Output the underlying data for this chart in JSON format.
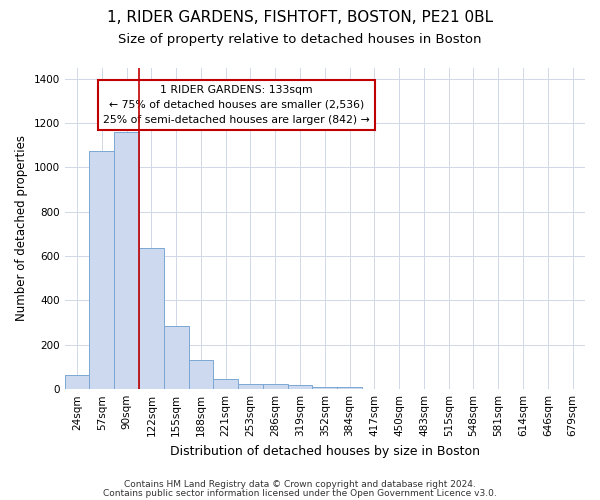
{
  "title1": "1, RIDER GARDENS, FISHTOFT, BOSTON, PE21 0BL",
  "title2": "Size of property relative to detached houses in Boston",
  "xlabel": "Distribution of detached houses by size in Boston",
  "ylabel": "Number of detached properties",
  "categories": [
    "24sqm",
    "57sqm",
    "90sqm",
    "122sqm",
    "155sqm",
    "188sqm",
    "221sqm",
    "253sqm",
    "286sqm",
    "319sqm",
    "352sqm",
    "384sqm",
    "417sqm",
    "450sqm",
    "483sqm",
    "515sqm",
    "548sqm",
    "581sqm",
    "614sqm",
    "646sqm",
    "679sqm"
  ],
  "values": [
    65,
    1075,
    1160,
    635,
    285,
    130,
    48,
    22,
    22,
    18,
    12,
    12,
    0,
    0,
    0,
    0,
    0,
    0,
    0,
    0,
    0
  ],
  "bar_color": "#ccd9ee",
  "bar_edge_color": "#7ba7d4",
  "red_line_x": 2.5,
  "annotation_text": "1 RIDER GARDENS: 133sqm\n← 75% of detached houses are smaller (2,536)\n25% of semi-detached houses are larger (842) →",
  "annotation_box_color": "#ffffff",
  "annotation_box_edge": "#c00000",
  "red_line_color": "#c00000",
  "footer1": "Contains HM Land Registry data © Crown copyright and database right 2024.",
  "footer2": "Contains public sector information licensed under the Open Government Licence v3.0.",
  "ylim": [
    0,
    1450
  ],
  "yticks": [
    0,
    200,
    400,
    600,
    800,
    1000,
    1200,
    1400
  ],
  "bg_color": "#ffffff",
  "plot_bg_color": "#ffffff",
  "title1_fontsize": 11,
  "title2_fontsize": 9.5,
  "xlabel_fontsize": 9,
  "ylabel_fontsize": 8.5,
  "tick_fontsize": 7.5,
  "footer_fontsize": 6.5
}
